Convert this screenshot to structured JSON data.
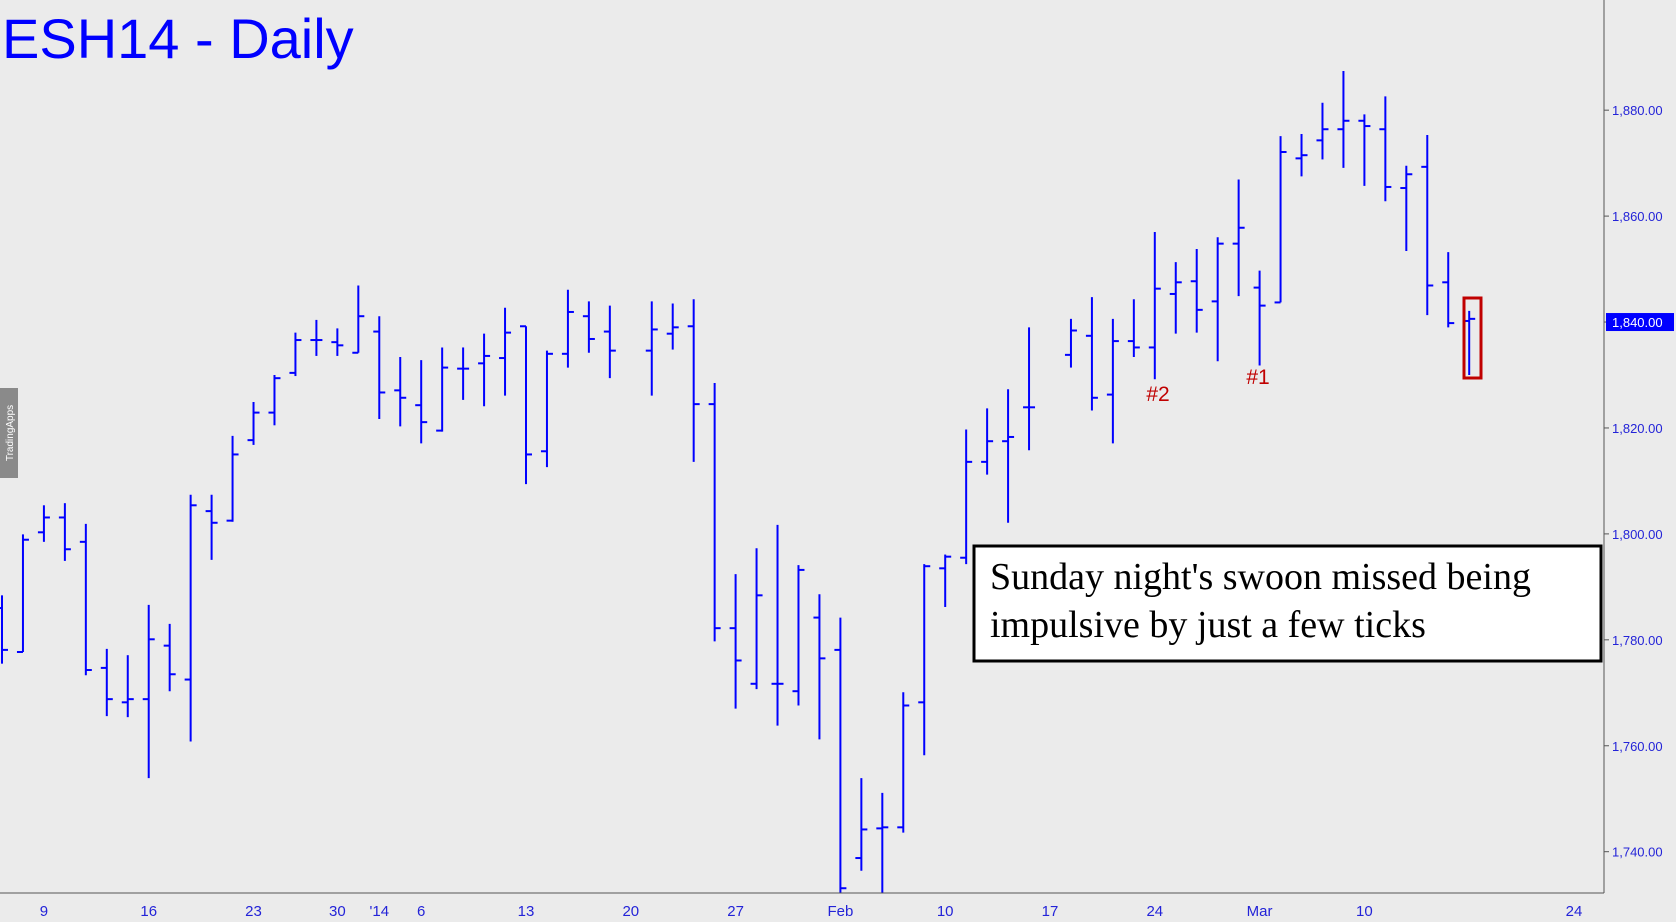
{
  "chart_data": {
    "type": "ohlc",
    "title": "ESH14 - Daily",
    "watermark": "TradingApps",
    "color": "#0000ff",
    "categories": [
      null,
      null,
      "9",
      null,
      null,
      null,
      null,
      "16",
      null,
      null,
      null,
      null,
      "23",
      null,
      null,
      null,
      "30",
      null,
      "'14",
      null,
      "6",
      null,
      null,
      null,
      null,
      "13",
      null,
      null,
      null,
      null,
      "20",
      null,
      null,
      null,
      null,
      "27",
      null,
      null,
      null,
      null,
      "Feb",
      null,
      null,
      null,
      null,
      "10",
      null,
      null,
      null,
      null,
      "17",
      null,
      null,
      null,
      null,
      "24",
      null,
      null,
      null,
      null,
      "Mar",
      null,
      null,
      null,
      null,
      "10",
      null,
      null,
      null,
      null,
      null,
      null,
      null,
      null,
      null,
      "24"
    ],
    "open": [
      1786.0,
      1777.7,
      1800.3,
      1803.1,
      1798.5,
      1774.7,
      1768.2,
      1768.8,
      1778.9,
      1772.5,
      1804.3,
      1802.5,
      1817.7,
      1822.9,
      1830.4,
      1836.6,
      1836.2,
      1834.2,
      1838.2,
      1827.1,
      1824.3,
      1819.5,
      1831.2,
      1832.2,
      1833.2,
      1839.2,
      1815.6,
      1834.0,
      1841.1,
      1838.2,
      null,
      1834.6,
      1837.8,
      1839.2,
      1824.5,
      1782.2,
      1771.7,
      1771.7,
      1770.3,
      1784.2,
      1778.1,
      1738.8,
      1744.4,
      1744.6,
      1768.2,
      1793.5,
      1795.5,
      1813.6,
      1817.5,
      1823.9,
      null,
      1833.8,
      1837.4,
      1826.3,
      1836.4,
      1835.2,
      1845.3,
      1847.7,
      1843.9,
      1854.8,
      1846.5,
      1843.7,
      1870.9,
      1874.3,
      1876.4,
      1878.0,
      1876.4,
      1865.3,
      1869.3,
      1847.5,
      1840.2,
      null,
      null,
      null,
      null,
      null
    ],
    "high": [
      1788.4,
      1799.9,
      1805.4,
      1805.8,
      1801.9,
      1778.3,
      1777.1,
      1786.6,
      1783.0,
      1807.4,
      1807.4,
      1818.5,
      1824.9,
      1830.0,
      1838.0,
      1840.4,
      1838.8,
      1846.9,
      1841.1,
      1833.4,
      1832.8,
      1835.2,
      1835.2,
      1837.8,
      1842.7,
      1839.2,
      1834.6,
      1846.1,
      1843.9,
      1843.1,
      null,
      1843.9,
      1843.5,
      1844.3,
      1828.5,
      1792.4,
      1797.3,
      1801.7,
      1794.1,
      1788.6,
      1784.2,
      1753.9,
      1751.1,
      1770.1,
      1794.3,
      1796.1,
      1819.7,
      1823.7,
      1827.3,
      1839.0,
      null,
      1840.6,
      1844.7,
      1840.6,
      1844.3,
      1857.0,
      1851.3,
      1853.8,
      1856.0,
      1866.9,
      1849.7,
      1875.1,
      1875.5,
      1881.4,
      1887.4,
      1879.2,
      1882.6,
      1869.5,
      1875.3,
      1853.2,
      1842.1,
      null,
      null,
      null,
      null,
      null
    ],
    "low": [
      1775.5,
      1777.7,
      1798.5,
      1794.9,
      1773.3,
      1765.6,
      1765.4,
      1753.9,
      1770.3,
      1760.8,
      1795.1,
      1802.3,
      1816.8,
      1820.5,
      1829.8,
      1833.6,
      1833.6,
      1834.2,
      1821.7,
      1820.3,
      1817.1,
      1819.3,
      1825.3,
      1824.1,
      1826.1,
      1809.4,
      1812.6,
      1831.4,
      1834.2,
      1829.4,
      null,
      1826.1,
      1834.8,
      1813.6,
      1779.7,
      1767.0,
      1770.7,
      1763.8,
      1767.6,
      1761.2,
      1732.3,
      1736.4,
      1732.3,
      1743.6,
      1758.2,
      1786.2,
      1794.3,
      1811.2,
      1802.1,
      1815.8,
      null,
      1831.4,
      1823.3,
      1817.1,
      1833.4,
      1829.2,
      1837.8,
      1838.0,
      1832.6,
      1844.9,
      1831.8,
      1843.7,
      1867.5,
      1870.7,
      1869.1,
      1865.7,
      1862.8,
      1853.4,
      1841.3,
      1839.0,
      1830.0,
      null,
      null,
      null,
      null,
      null
    ],
    "close": [
      1778.1,
      1798.9,
      1803.1,
      1797.1,
      1774.3,
      1768.8,
      1768.8,
      1780.1,
      1773.5,
      1805.4,
      1802.1,
      1815.0,
      1822.9,
      1829.4,
      1836.6,
      1836.6,
      1835.6,
      1841.1,
      1826.7,
      1825.7,
      1821.1,
      1831.4,
      1831.2,
      1833.6,
      1838.0,
      1815.0,
      1834.0,
      1841.9,
      1836.8,
      1834.6,
      null,
      1838.6,
      1839.0,
      1824.5,
      1782.2,
      1776.1,
      1788.4,
      1771.7,
      1793.2,
      1776.5,
      1733.1,
      1744.2,
      1744.6,
      1767.6,
      1793.9,
      1795.7,
      1813.6,
      1817.5,
      1818.3,
      1823.9,
      null,
      1838.4,
      1825.7,
      1836.4,
      1835.2,
      1846.3,
      1847.5,
      1842.3,
      1854.8,
      1857.8,
      1843.1,
      1872.1,
      1871.5,
      1876.4,
      1878.0,
      1877.0,
      1865.5,
      1867.9,
      1846.9,
      1839.8,
      1840.6,
      null,
      null,
      null,
      null,
      null
    ],
    "ylim": [
      1732.2,
      1900.8
    ],
    "yticks": [
      {
        "value": 1740,
        "label": "1,740.00"
      },
      {
        "value": 1760,
        "label": "1,760.00"
      },
      {
        "value": 1780,
        "label": "1,780.00"
      },
      {
        "value": 1800,
        "label": "1,800.00"
      },
      {
        "value": 1820,
        "label": "1,820.00"
      },
      {
        "value": 1840,
        "label": "1,840.00"
      },
      {
        "value": 1860,
        "label": "1,860.00"
      },
      {
        "value": 1880,
        "label": "1,880.00"
      }
    ],
    "last_price": 1840,
    "annotations": [
      "#2",
      "#1"
    ],
    "comment": [
      "Sunday night's swoon missed being",
      "impulsive by just a few ticks"
    ]
  }
}
